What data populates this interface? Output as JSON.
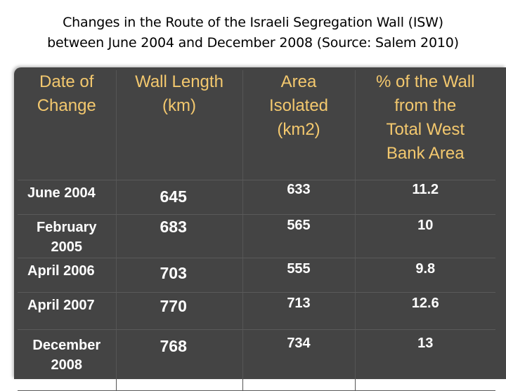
{
  "title": {
    "line1": "Changes in the Route of the Israeli Segregation Wall (ISW)",
    "line2": "between June 2004 and December 2008  (Source: Salem 2010)"
  },
  "table": {
    "headers": [
      [
        "Date of",
        "Change"
      ],
      [
        "Wall Length",
        "(km)"
      ],
      [
        "Area",
        "Isolated",
        "(km2)"
      ],
      [
        "% of the Wall",
        "from the",
        "Total West",
        "Bank Area"
      ]
    ],
    "rows": [
      {
        "date": [
          "June 2004"
        ],
        "length": "645",
        "area": "633",
        "pct": "11.2"
      },
      {
        "date": [
          "February",
          "2005"
        ],
        "length": "683",
        "area": "565",
        "pct": "10"
      },
      {
        "date": [
          "April 2006"
        ],
        "length": "703",
        "area": "555",
        "pct": "9.8"
      },
      {
        "date": [
          "April 2007"
        ],
        "length": "770",
        "area": "713",
        "pct": "12.6"
      },
      {
        "date": [
          "December",
          "2008"
        ],
        "length": "768",
        "area": "734",
        "pct": "13"
      }
    ]
  },
  "colors": {
    "header_text": "#f3c86e",
    "cell_text": "#ffffff",
    "panel": "#444444",
    "background": "#ffffff"
  }
}
